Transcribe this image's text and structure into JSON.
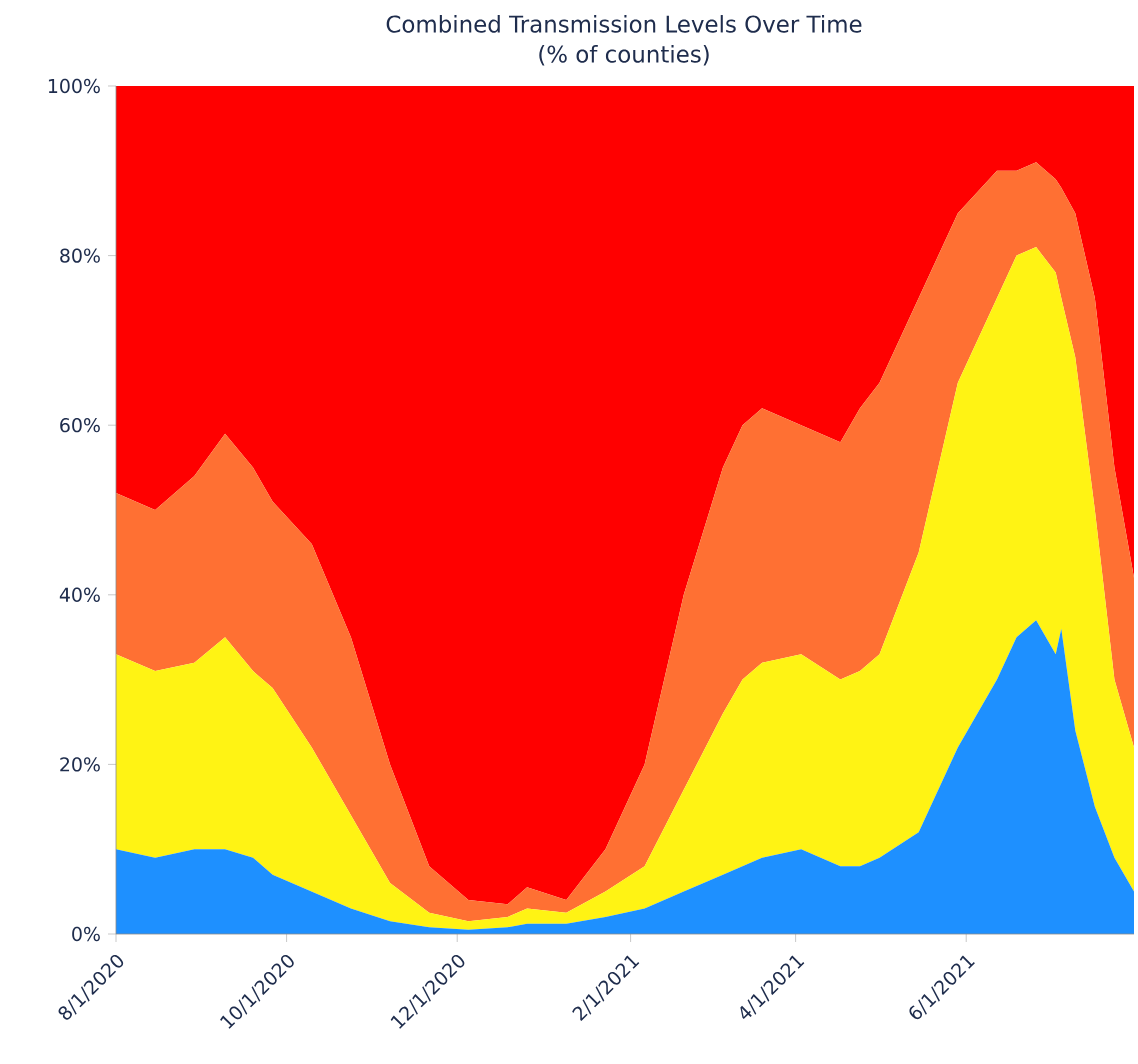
{
  "chart_data": {
    "type": "area",
    "stacked": true,
    "title": "Combined Transmission Levels Over Time",
    "subtitle": "(% of counties)",
    "x": [
      "2020-08-01",
      "2020-08-15",
      "2020-08-29",
      "2020-09-09",
      "2020-09-19",
      "2020-09-26",
      "2020-10-10",
      "2020-10-24",
      "2020-11-07",
      "2020-11-21",
      "2020-12-05",
      "2020-12-19",
      "2020-12-26",
      "2021-01-09",
      "2021-01-23",
      "2021-02-06",
      "2021-02-20",
      "2021-03-06",
      "2021-03-13",
      "2021-03-20",
      "2021-04-03",
      "2021-04-17",
      "2021-04-24",
      "2021-05-01",
      "2021-05-15",
      "2021-05-29",
      "2021-06-12",
      "2021-06-19",
      "2021-06-26",
      "2021-07-03",
      "2021-07-05",
      "2021-07-10",
      "2021-07-17",
      "2021-07-24",
      "2021-07-31"
    ],
    "series": [
      {
        "color": "#1e90ff",
        "values": [
          10,
          9,
          10,
          10,
          9,
          7,
          5,
          3,
          1.5,
          0.8,
          0.5,
          0.8,
          1.2,
          1.2,
          2,
          3,
          5,
          7,
          8,
          9,
          10,
          8,
          8,
          9,
          12,
          22,
          30,
          35,
          37,
          33,
          36,
          24,
          15,
          9,
          5
        ]
      },
      {
        "color": "#fff314",
        "values": [
          23,
          22,
          22,
          25,
          22,
          22,
          17,
          11,
          4.5,
          1.7,
          1,
          1.2,
          1.8,
          1.3,
          3,
          5,
          12,
          19,
          22,
          23,
          23,
          22,
          23,
          24,
          33,
          43,
          45,
          45,
          44,
          45,
          39,
          44,
          35,
          21,
          17
        ]
      },
      {
        "color": "#ff7033",
        "values": [
          19,
          19,
          22,
          24,
          24,
          22,
          24,
          21,
          14,
          5.5,
          2.5,
          1.5,
          2.5,
          1.5,
          5,
          12,
          23,
          29,
          30,
          30,
          27,
          28,
          31,
          32,
          30,
          20,
          15,
          10,
          10,
          11,
          13,
          17,
          25,
          25,
          20
        ]
      },
      {
        "color": "#ff0000",
        "values": [
          48,
          50,
          46,
          41,
          45,
          49,
          54,
          65,
          80,
          92,
          96,
          96.5,
          94.5,
          96,
          90,
          80,
          60,
          45,
          40,
          38,
          40,
          42,
          38,
          35,
          25,
          15,
          10,
          10,
          9,
          11,
          12,
          15,
          25,
          45,
          58
        ]
      }
    ],
    "xlim": [
      "2020-08-01",
      "2021-07-31"
    ],
    "xticks": [
      {
        "value": "2020-08-01",
        "label": "8/1/2020"
      },
      {
        "value": "2020-10-01",
        "label": "10/1/2020"
      },
      {
        "value": "2020-12-01",
        "label": "12/1/2020"
      },
      {
        "value": "2021-02-01",
        "label": "2/1/2021"
      },
      {
        "value": "2021-04-01",
        "label": "4/1/2021"
      },
      {
        "value": "2021-06-01",
        "label": "6/1/2021"
      }
    ],
    "ylim": [
      0,
      100
    ],
    "yticks": [
      {
        "value": 0,
        "label": "0%"
      },
      {
        "value": 20,
        "label": "20%"
      },
      {
        "value": 40,
        "label": "40%"
      },
      {
        "value": 60,
        "label": "60%"
      },
      {
        "value": 80,
        "label": "80%"
      },
      {
        "value": 100,
        "label": "100%"
      }
    ],
    "grid": false
  }
}
